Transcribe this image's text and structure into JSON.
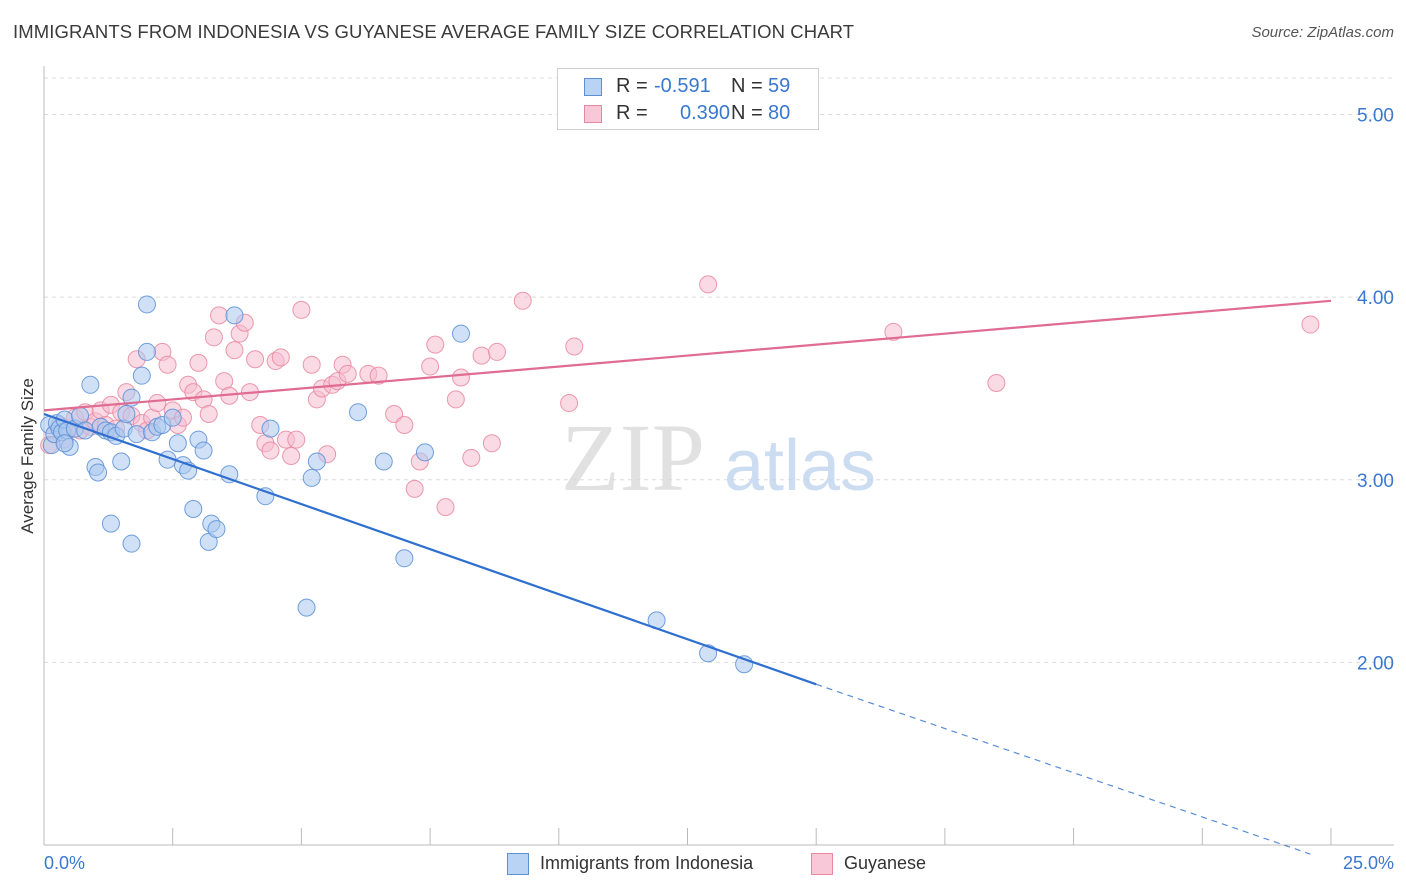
{
  "title": "IMMIGRANTS FROM INDONESIA VS GUYANESE AVERAGE FAMILY SIZE CORRELATION CHART",
  "source": "Source: ZipAtlas.com",
  "watermark": {
    "zip": "ZIP",
    "atlas": "atlas"
  },
  "colors": {
    "blue_fill": "#a9c8f0",
    "blue_edge": "#5b8fd6",
    "blue_line": "#2f6fd0",
    "pink_fill": "#f6bcd0",
    "pink_edge": "#e7889f",
    "pink_line": "#e06b93",
    "axis_text": "#3a78d0",
    "grid": "#dcdcdc"
  },
  "legend_top": [
    {
      "r_label": "R =",
      "r_value": "-0.591",
      "n_label": "N =",
      "n_value": "59"
    },
    {
      "r_label": "R =",
      "r_value": "0.390",
      "n_label": "N =",
      "n_value": "80"
    }
  ],
  "chart_data": {
    "type": "scatter",
    "title": "IMMIGRANTS FROM INDONESIA VS GUYANESE AVERAGE FAMILY SIZE CORRELATION CHART",
    "xlabel": "",
    "ylabel": "Average Family Size",
    "xlim": [
      0,
      25
    ],
    "ylim": [
      1.0,
      5.2
    ],
    "x_tick_labels": [
      "0.0%",
      "25.0%"
    ],
    "y_ticks": [
      2.0,
      3.0,
      4.0,
      5.0
    ],
    "y_tick_labels": [
      "2.00",
      "3.00",
      "4.00",
      "5.00"
    ],
    "grid": "horizontal dashed",
    "legend_position": "top-center and bottom",
    "series": [
      {
        "name": "Immigrants from Indonesia",
        "color": "#a9c8f0",
        "trend": {
          "x": [
            0.0,
            15.0
          ],
          "y": [
            3.36,
            1.88
          ],
          "extended_dashed_to": [
            24.6,
            0.95
          ]
        },
        "points": [
          [
            0.1,
            3.3
          ],
          [
            0.15,
            3.19
          ],
          [
            0.2,
            3.25
          ],
          [
            0.25,
            3.31
          ],
          [
            0.3,
            3.28
          ],
          [
            0.35,
            3.26
          ],
          [
            0.4,
            3.33
          ],
          [
            0.45,
            3.27
          ],
          [
            0.5,
            3.18
          ],
          [
            0.6,
            3.28
          ],
          [
            0.7,
            3.35
          ],
          [
            0.8,
            3.27
          ],
          [
            0.9,
            3.52
          ],
          [
            1.0,
            3.07
          ],
          [
            1.05,
            3.04
          ],
          [
            1.1,
            3.29
          ],
          [
            1.2,
            3.27
          ],
          [
            1.3,
            3.26
          ],
          [
            1.4,
            3.24
          ],
          [
            1.5,
            3.1
          ],
          [
            1.55,
            3.28
          ],
          [
            1.6,
            3.36
          ],
          [
            1.7,
            3.45
          ],
          [
            1.8,
            3.25
          ],
          [
            1.9,
            3.57
          ],
          [
            2.0,
            3.7
          ],
          [
            2.1,
            3.26
          ],
          [
            2.2,
            3.29
          ],
          [
            2.3,
            3.3
          ],
          [
            2.4,
            3.11
          ],
          [
            2.5,
            3.34
          ],
          [
            2.6,
            3.2
          ],
          [
            2.7,
            3.08
          ],
          [
            2.8,
            3.05
          ],
          [
            2.9,
            2.84
          ],
          [
            3.0,
            3.22
          ],
          [
            3.1,
            3.16
          ],
          [
            3.2,
            2.66
          ],
          [
            3.25,
            2.76
          ],
          [
            3.35,
            2.73
          ],
          [
            1.3,
            2.76
          ],
          [
            1.7,
            2.65
          ],
          [
            3.6,
            3.03
          ],
          [
            3.7,
            3.9
          ],
          [
            4.3,
            2.91
          ],
          [
            4.4,
            3.28
          ],
          [
            5.1,
            2.3
          ],
          [
            5.2,
            3.01
          ],
          [
            5.3,
            3.1
          ],
          [
            6.1,
            3.37
          ],
          [
            6.6,
            3.1
          ],
          [
            7.0,
            2.57
          ],
          [
            7.4,
            3.15
          ],
          [
            8.1,
            3.8
          ],
          [
            11.9,
            2.23
          ],
          [
            12.9,
            2.05
          ],
          [
            13.6,
            1.99
          ],
          [
            2.0,
            3.96
          ],
          [
            0.4,
            3.2
          ]
        ]
      },
      {
        "name": "Guyanese",
        "color": "#f6bcd0",
        "trend": {
          "x": [
            0.0,
            25.0
          ],
          "y": [
            3.38,
            3.98
          ]
        },
        "points": [
          [
            0.1,
            3.19
          ],
          [
            0.2,
            3.25
          ],
          [
            0.3,
            3.3
          ],
          [
            0.4,
            3.22
          ],
          [
            0.5,
            3.28
          ],
          [
            0.6,
            3.34
          ],
          [
            0.7,
            3.27
          ],
          [
            0.8,
            3.37
          ],
          [
            0.9,
            3.29
          ],
          [
            1.0,
            3.32
          ],
          [
            1.1,
            3.38
          ],
          [
            1.2,
            3.3
          ],
          [
            1.3,
            3.41
          ],
          [
            1.4,
            3.28
          ],
          [
            1.5,
            3.37
          ],
          [
            1.6,
            3.48
          ],
          [
            1.7,
            3.35
          ],
          [
            1.8,
            3.66
          ],
          [
            1.9,
            3.31
          ],
          [
            2.0,
            3.27
          ],
          [
            2.1,
            3.34
          ],
          [
            2.2,
            3.42
          ],
          [
            2.3,
            3.7
          ],
          [
            2.4,
            3.63
          ],
          [
            2.5,
            3.38
          ],
          [
            2.6,
            3.3
          ],
          [
            2.7,
            3.34
          ],
          [
            2.8,
            3.52
          ],
          [
            2.9,
            3.48
          ],
          [
            3.0,
            3.64
          ],
          [
            3.1,
            3.44
          ],
          [
            3.2,
            3.36
          ],
          [
            3.3,
            3.78
          ],
          [
            3.4,
            3.9
          ],
          [
            3.5,
            3.54
          ],
          [
            3.6,
            3.46
          ],
          [
            3.7,
            3.71
          ],
          [
            3.8,
            3.8
          ],
          [
            3.9,
            3.86
          ],
          [
            4.0,
            3.48
          ],
          [
            4.1,
            3.66
          ],
          [
            4.2,
            3.3
          ],
          [
            4.3,
            3.2
          ],
          [
            4.4,
            3.16
          ],
          [
            4.5,
            3.65
          ],
          [
            4.6,
            3.67
          ],
          [
            4.7,
            3.22
          ],
          [
            4.8,
            3.13
          ],
          [
            4.9,
            3.22
          ],
          [
            5.2,
            3.63
          ],
          [
            5.3,
            3.44
          ],
          [
            5.4,
            3.5
          ],
          [
            5.5,
            3.14
          ],
          [
            5.6,
            3.52
          ],
          [
            5.7,
            3.54
          ],
          [
            5.8,
            3.63
          ],
          [
            5.9,
            3.58
          ],
          [
            6.3,
            3.58
          ],
          [
            6.5,
            3.57
          ],
          [
            6.8,
            3.36
          ],
          [
            7.0,
            3.3
          ],
          [
            7.3,
            3.1
          ],
          [
            7.5,
            3.62
          ],
          [
            7.6,
            3.74
          ],
          [
            7.8,
            2.85
          ],
          [
            8.0,
            3.44
          ],
          [
            8.1,
            3.56
          ],
          [
            8.3,
            3.12
          ],
          [
            8.5,
            3.68
          ],
          [
            8.7,
            3.2
          ],
          [
            8.8,
            3.7
          ],
          [
            9.3,
            3.98
          ],
          [
            10.2,
            3.42
          ],
          [
            10.3,
            3.73
          ],
          [
            12.9,
            4.07
          ],
          [
            16.5,
            3.81
          ],
          [
            18.5,
            3.53
          ],
          [
            24.6,
            3.85
          ],
          [
            5.0,
            3.93
          ],
          [
            7.2,
            2.95
          ]
        ]
      }
    ]
  },
  "legend_bottom": [
    {
      "label": "Immigrants from Indonesia"
    },
    {
      "label": "Guyanese"
    }
  ]
}
